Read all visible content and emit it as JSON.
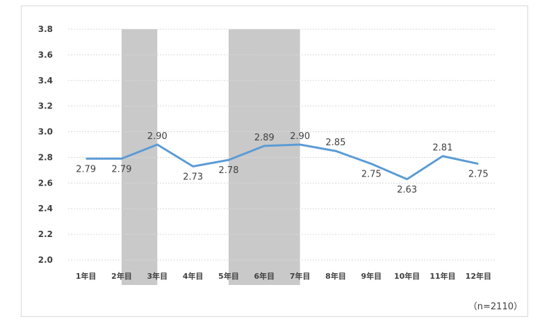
{
  "chart_data": {
    "type": "line",
    "categories": [
      "1年目",
      "2年目",
      "3年目",
      "4年目",
      "5年目",
      "6年目",
      "7年目",
      "8年目",
      "9年目",
      "10年目",
      "11年目",
      "12年目"
    ],
    "values": [
      2.79,
      2.79,
      2.9,
      2.73,
      2.78,
      2.89,
      2.9,
      2.85,
      2.75,
      2.63,
      2.81,
      2.75
    ],
    "data_labels": [
      "2.79",
      "2.79",
      "2.90",
      "2.73",
      "2.78",
      "2.89",
      "2.90",
      "2.85",
      "2.75",
      "2.63",
      "2.81",
      "2.75"
    ],
    "yticks": [
      "2.0",
      "2.2",
      "2.4",
      "2.6",
      "2.8",
      "3.0",
      "3.2",
      "3.4",
      "3.6",
      "3.8"
    ],
    "ylim": [
      2.0,
      3.8
    ],
    "grid": true,
    "line_color": "#5b9bd5",
    "shaded_bands": [
      [
        1,
        2
      ],
      [
        4,
        6
      ]
    ],
    "band_color": "#c9c9c9",
    "title": "",
    "xlabel": "",
    "ylabel": ""
  },
  "note": "（n=2110）"
}
